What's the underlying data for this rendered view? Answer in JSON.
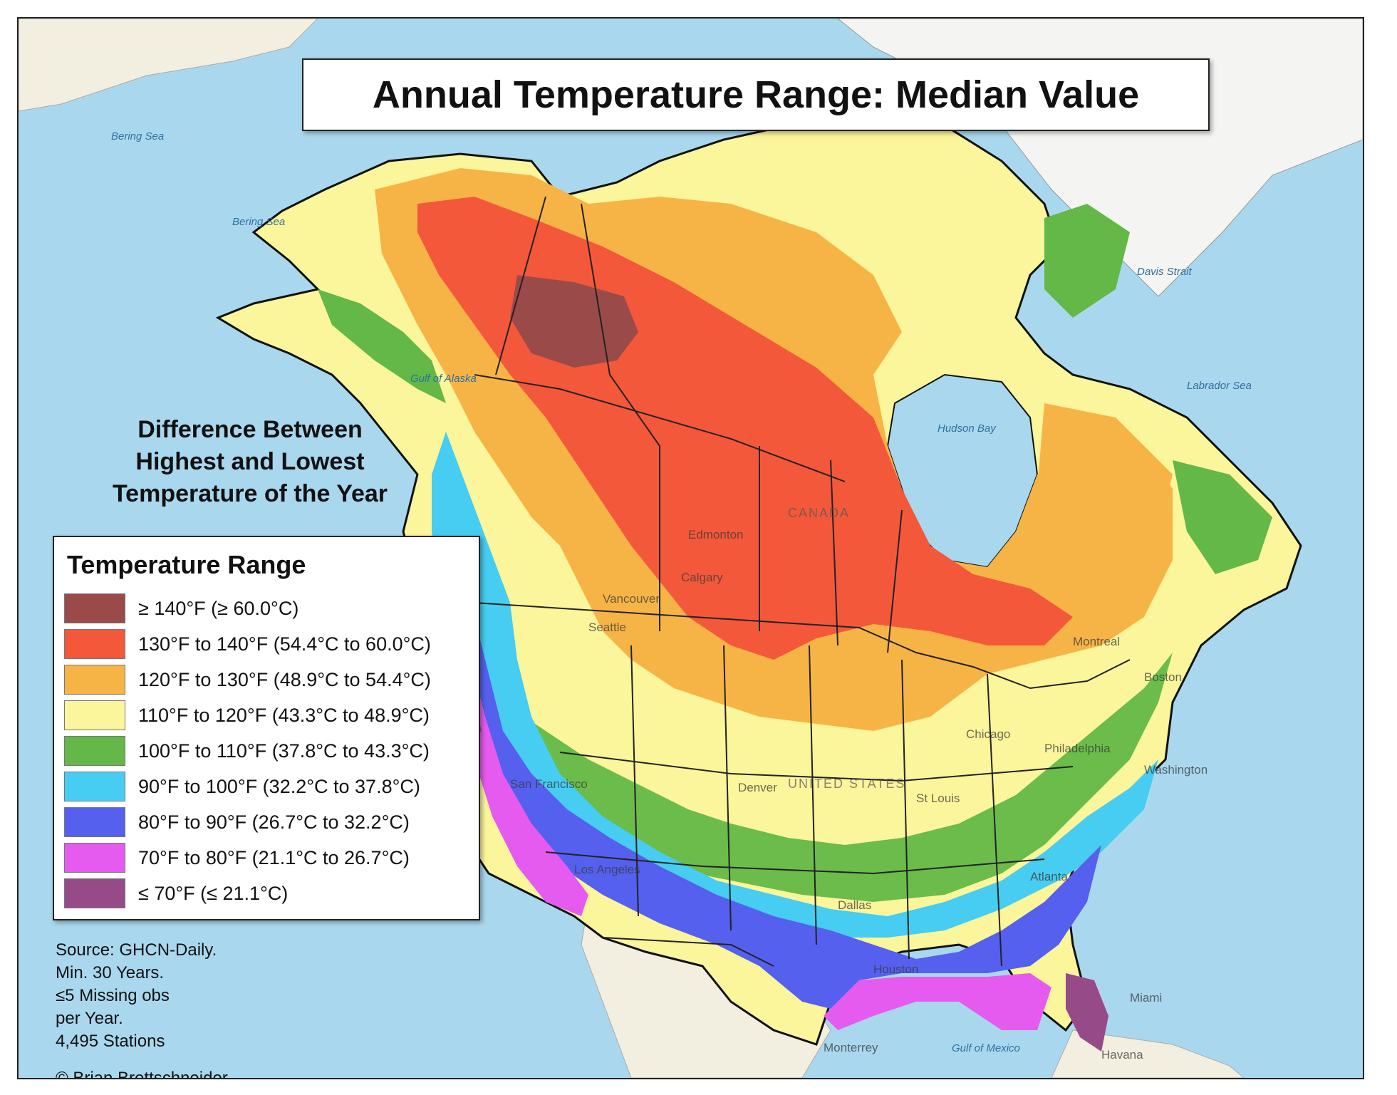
{
  "title": "Annual Temperature Range: Median Value",
  "subtitle": [
    "Difference Between",
    "Highest and Lowest",
    "Temperature of the Year"
  ],
  "legend": {
    "title": "Temperature Range",
    "items": [
      {
        "label": "≥ 140°F (≥ 60.0°C)",
        "color": "#9b4a4a"
      },
      {
        "label": "130°F to 140°F (54.4°C to 60.0°C)",
        "color": "#f4583b"
      },
      {
        "label": "120°F to 130°F (48.9°C to 54.4°C)",
        "color": "#f7b446"
      },
      {
        "label": "110°F to 120°F (43.3°C to 48.9°C)",
        "color": "#fbf59b"
      },
      {
        "label": "100°F to 110°F (37.8°C to 43.3°C)",
        "color": "#63b847"
      },
      {
        "label": "90°F to 100°F (32.2°C to 37.8°C)",
        "color": "#46cdf1"
      },
      {
        "label": "80°F to 90°F (26.7°C to 32.2°C)",
        "color": "#5560ee"
      },
      {
        "label": "70°F to 80°F (21.1°C to 26.7°C)",
        "color": "#e65bef"
      },
      {
        "label": "≤ 70°F (≤ 21.1°C)",
        "color": "#974a88"
      }
    ]
  },
  "source": [
    "Source: GHCN-Daily.",
    "Min. 30 Years.",
    "≤5 Missing obs",
    "per Year.",
    "4,495 Stations"
  ],
  "credit": "© Brian Brettschneider",
  "map_labels": {
    "bering_sea_1": "Bering Sea",
    "bering_sea_2": "Bering Sea",
    "gulf_of_alaska": "Gulf of Alaska",
    "hudson_bay": "Hudson Bay",
    "labrador_sea": "Labrador Sea",
    "davis_strait": "Davis Strait",
    "gulf_of_mexico": "Gulf of Mexico",
    "canada": "CANADA",
    "united_states": "UNITED STATES",
    "cities": [
      "Edmonton",
      "Calgary",
      "Vancouver",
      "Seattle",
      "Chicago",
      "Philadelphia",
      "Boston",
      "Montreal",
      "Denver",
      "St Louis",
      "Dallas",
      "Houston",
      "Atlanta",
      "Los Angeles",
      "San Francisco",
      "Miami",
      "Havana",
      "Monterrey",
      "Washington"
    ]
  },
  "colors": {
    "ocean": "#a9d8ee",
    "land_other": "#f2efe0",
    "greenland": "#f4f4f2",
    "border": "#222222"
  }
}
